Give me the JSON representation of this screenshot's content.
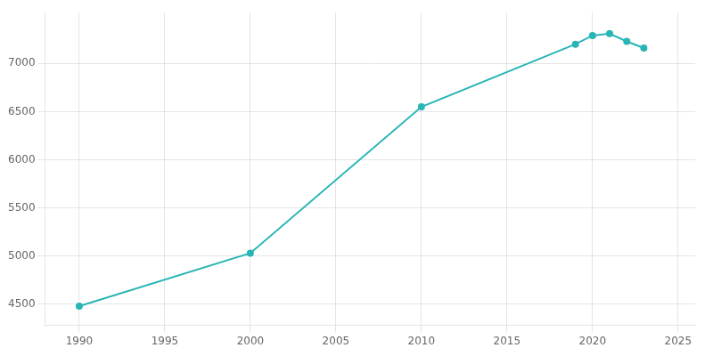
{
  "chart_data": {
    "type": "line",
    "x": [
      1990,
      2000,
      2010,
      2019,
      2020,
      2021,
      2022,
      2023
    ],
    "values": [
      4480,
      5030,
      6550,
      7200,
      7290,
      7310,
      7230,
      7160
    ],
    "color": "#29b5b5",
    "marker": "circle",
    "xlim": [
      1988,
      2026
    ],
    "ylim": [
      4280,
      7530
    ],
    "xticks": [
      1990,
      1995,
      2000,
      2005,
      2010,
      2015,
      2020,
      2025
    ],
    "yticks": [
      4500,
      5000,
      5500,
      6000,
      6500,
      7000
    ],
    "grid": true
  }
}
